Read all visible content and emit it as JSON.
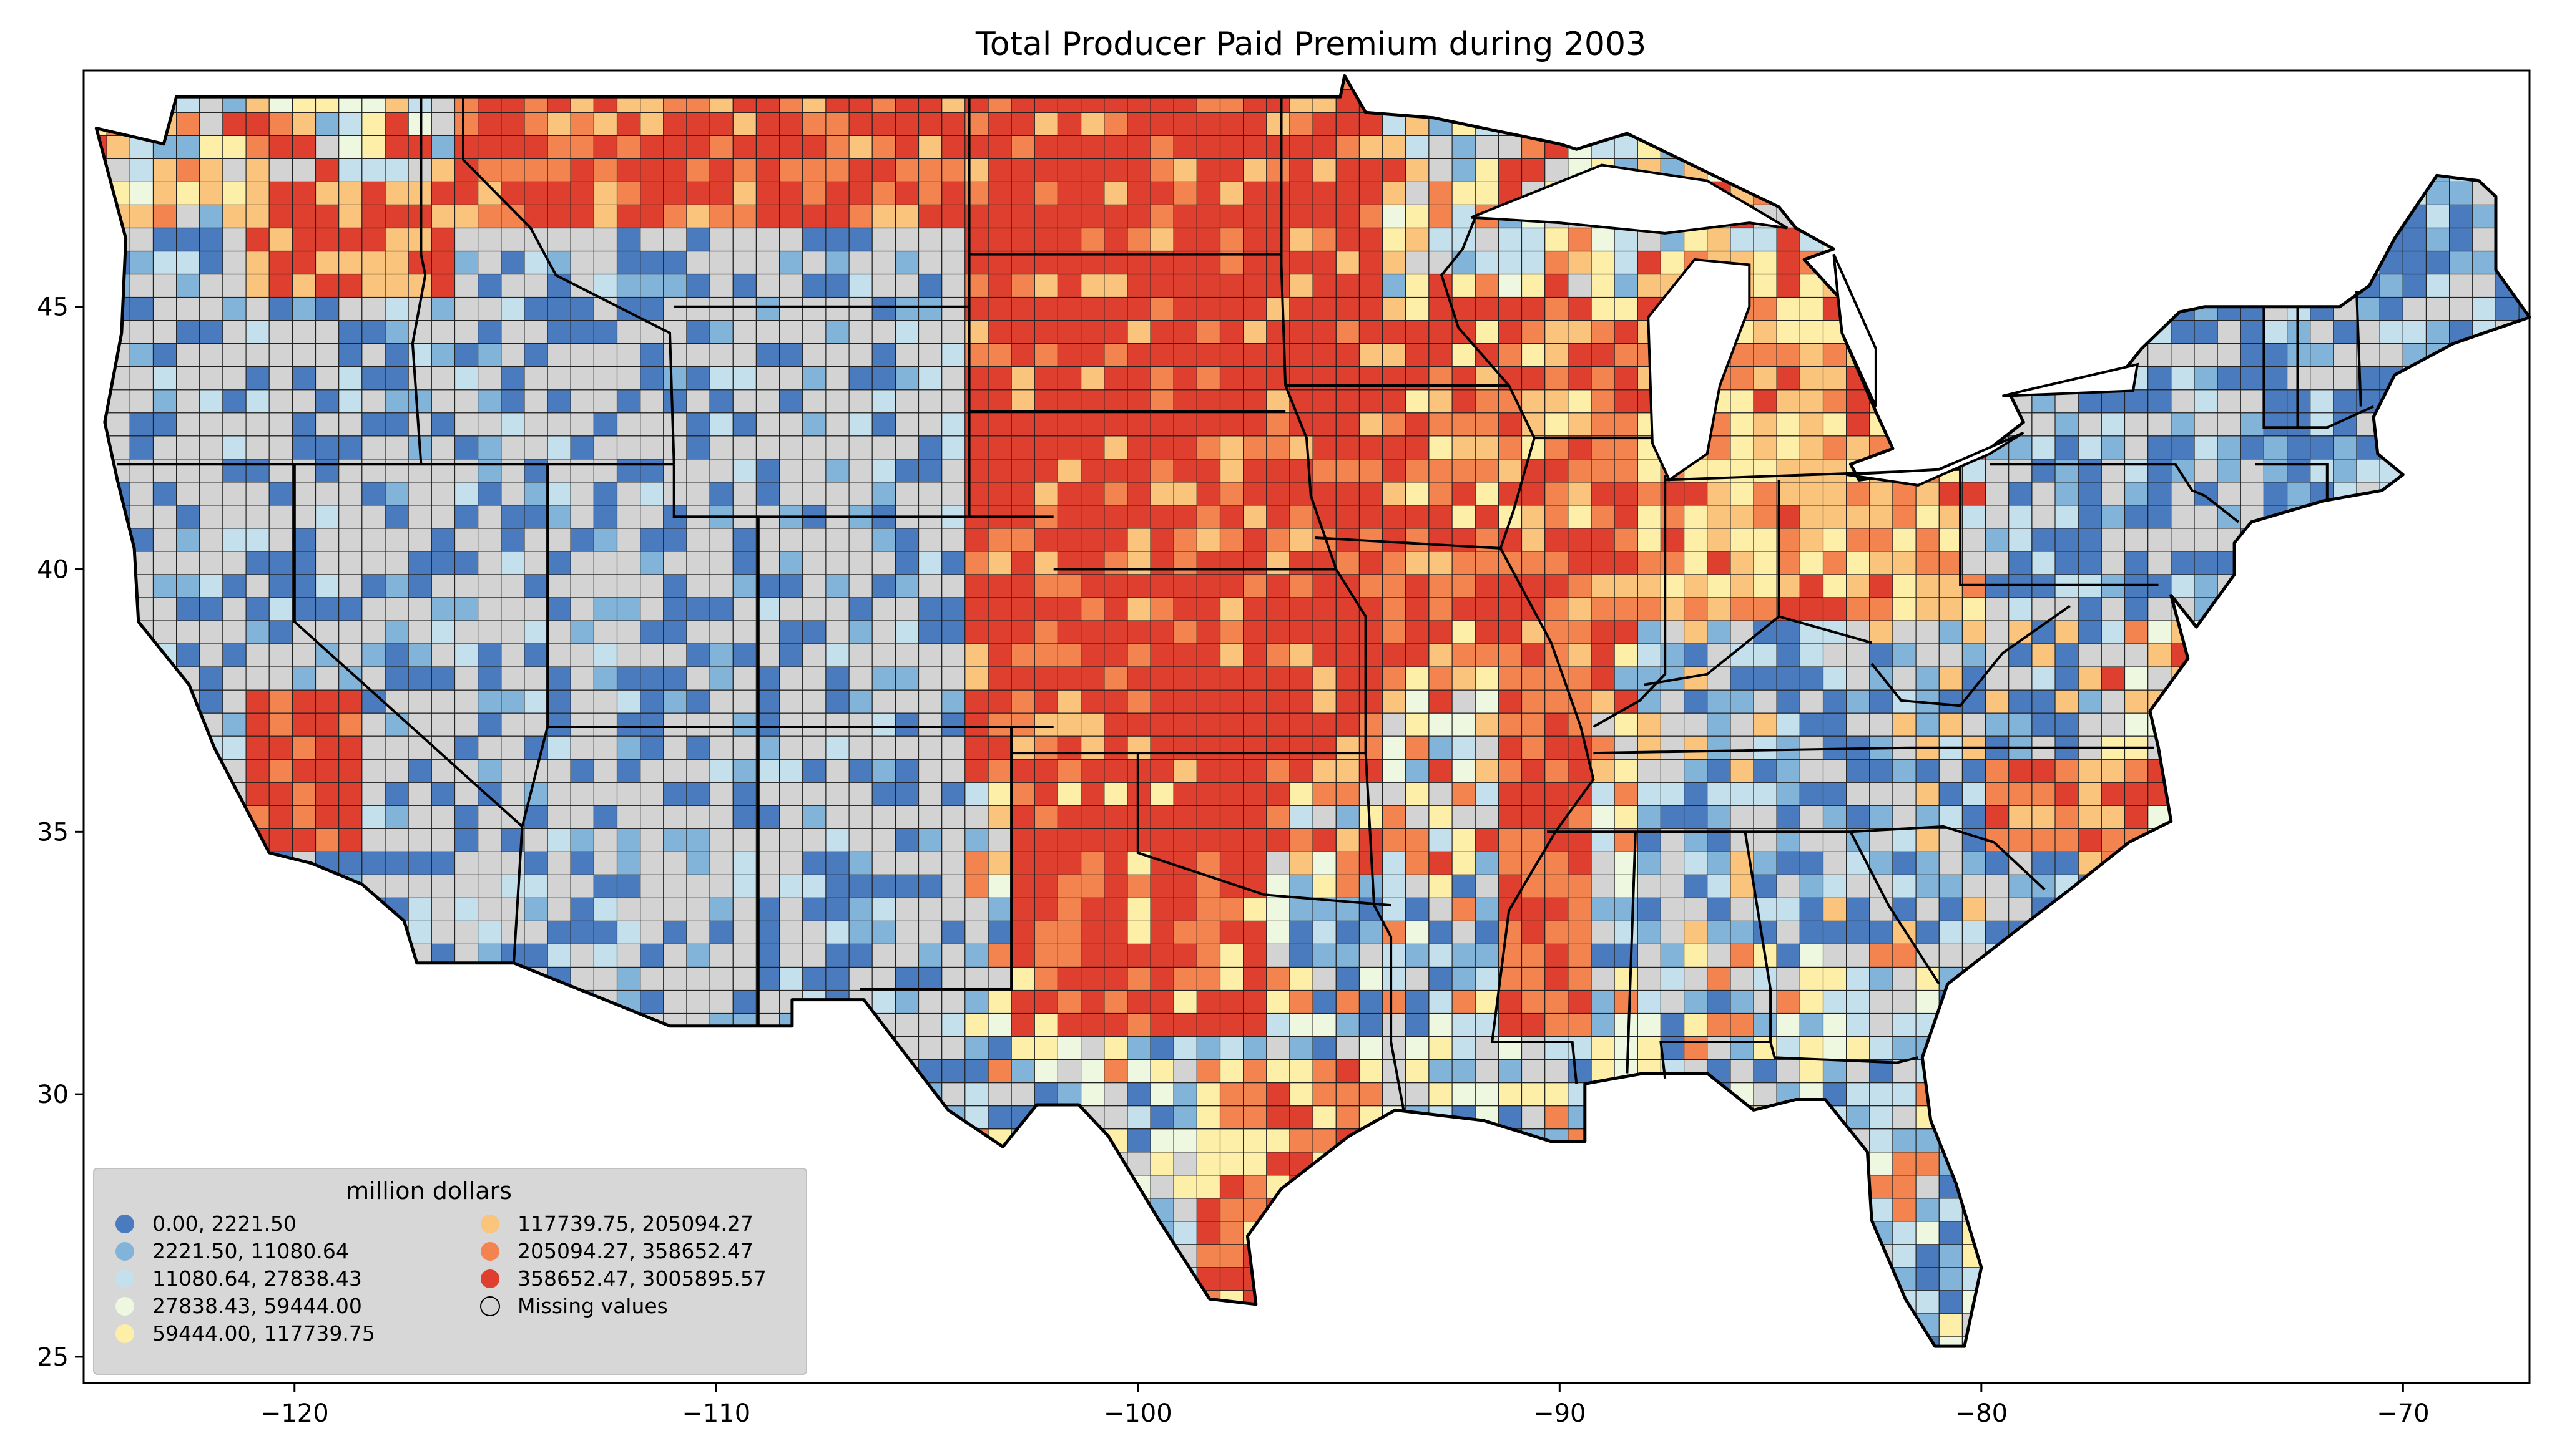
{
  "title": "Total Producer Paid Premium during 2003",
  "map": {
    "projection": "plate carree (lon/lat)",
    "xlim": [
      -125,
      -67
    ],
    "ylim": [
      24.5,
      49.5
    ],
    "x_ticks": [
      -120,
      -110,
      -100,
      -90,
      -80,
      -70
    ],
    "x_tick_labels": [
      "−120",
      "−110",
      "−100",
      "−90",
      "−80",
      "−70"
    ],
    "y_ticks": [
      25,
      30,
      35,
      40,
      45
    ],
    "y_tick_labels": [
      "25",
      "30",
      "35",
      "40",
      "45"
    ],
    "missing_color": "#d3d3d3",
    "border_color": "#000000"
  },
  "legend": {
    "title": "million dollars",
    "placement": "lower-left",
    "entries": [
      {
        "label": "0.00,    2221.50",
        "color": "#4a7bbf"
      },
      {
        "label": "2221.50,   11080.64",
        "color": "#82b3d8"
      },
      {
        "label": "11080.64,   27838.43",
        "color": "#c3e0ec"
      },
      {
        "label": "27838.43,   59444.00",
        "color": "#eef7df"
      },
      {
        "label": "59444.00,  117739.75",
        "color": "#fdeea8"
      },
      {
        "label": "117739.75,  205094.27",
        "color": "#fbc47c"
      },
      {
        "label": "205094.27,  358652.47",
        "color": "#f4844f"
      },
      {
        "label": "358652.47, 3005895.57",
        "color": "#de3f2e"
      },
      {
        "label": "Missing values",
        "color": "#d3d3d3"
      }
    ]
  }
}
